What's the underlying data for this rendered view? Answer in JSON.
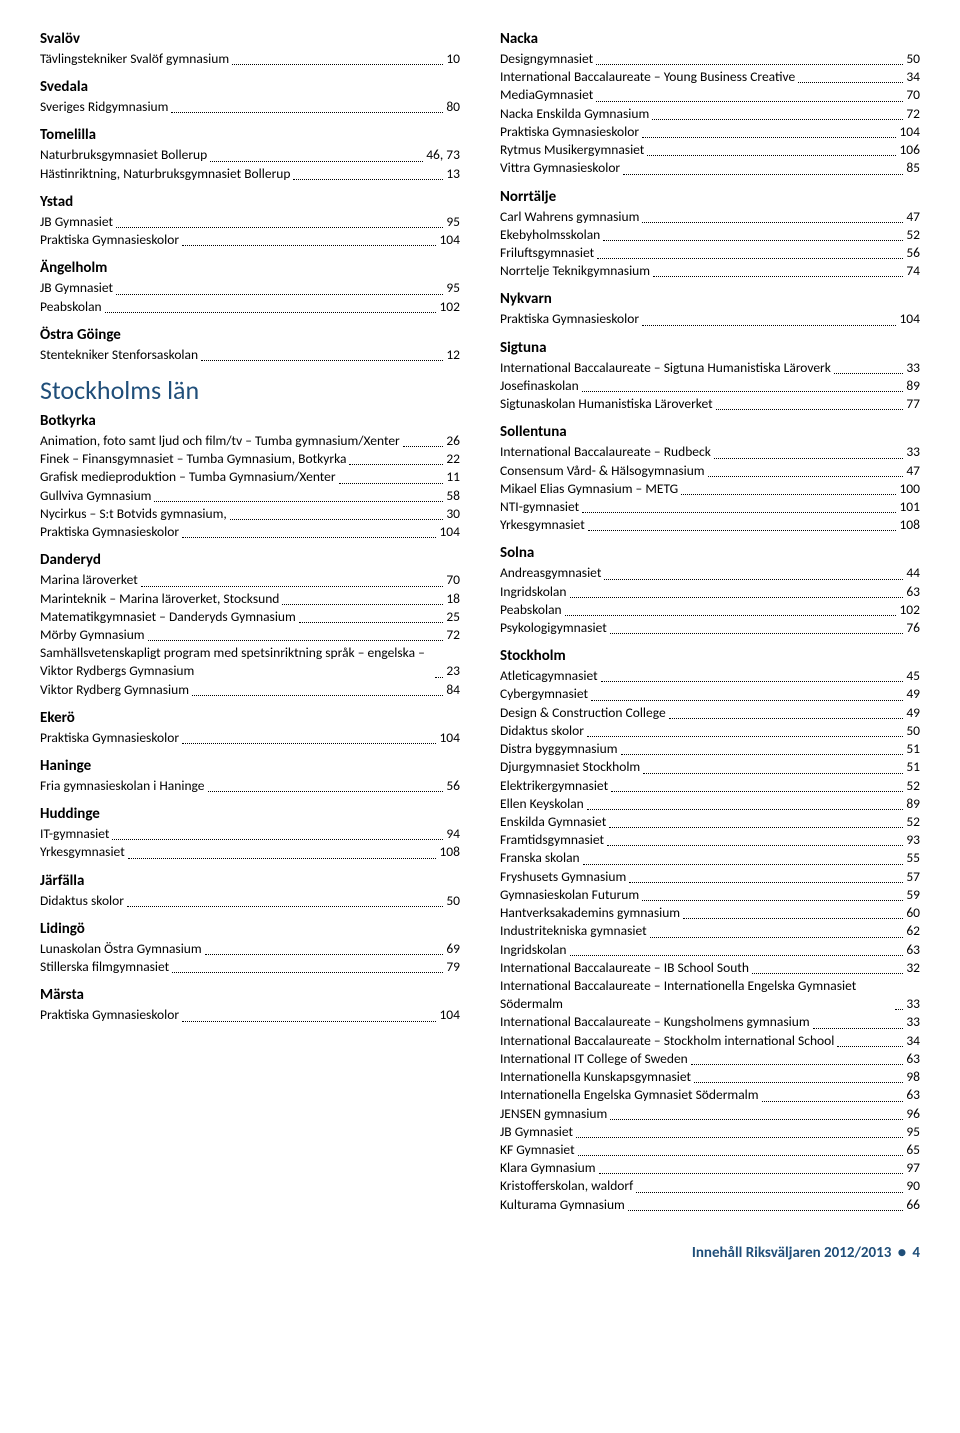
{
  "colors": {
    "heading": "#1f4e79",
    "text": "#000000",
    "background": "#ffffff"
  },
  "typography": {
    "body_font": "Calibri",
    "county_fontsize": 26,
    "municipality_fontsize": 15,
    "row_fontsize": 13.5
  },
  "footer": {
    "text": "Innehåll Riksväljaren 2012/2013",
    "page": "4"
  },
  "left": [
    {
      "type": "municipality",
      "text": "Svalöv"
    },
    {
      "type": "entry",
      "label": "Tävlingstekniker Svalöf gymnasium",
      "page": "10"
    },
    {
      "type": "municipality",
      "text": "Svedala"
    },
    {
      "type": "entry",
      "label": "Sveriges Ridgymnasium",
      "page": "80"
    },
    {
      "type": "municipality",
      "text": "Tomelilla"
    },
    {
      "type": "entry",
      "label": "Naturbruksgymnasiet Bollerup",
      "page": "46, 73"
    },
    {
      "type": "entry",
      "label": "Hästinriktning, Naturbruksgymnasiet Bollerup",
      "page": "13"
    },
    {
      "type": "municipality",
      "text": "Ystad"
    },
    {
      "type": "entry",
      "label": "JB Gymnasiet",
      "page": "95"
    },
    {
      "type": "entry",
      "label": "Praktiska Gymnasieskolor",
      "page": "104"
    },
    {
      "type": "municipality",
      "text": "Ängelholm"
    },
    {
      "type": "entry",
      "label": "JB Gymnasiet",
      "page": "95"
    },
    {
      "type": "entry",
      "label": "Peabskolan",
      "page": "102"
    },
    {
      "type": "municipality",
      "text": "Östra Göinge"
    },
    {
      "type": "entry",
      "label": "Stentekniker Stenforsaskolan",
      "page": "12"
    },
    {
      "type": "county",
      "text": "Stockholms län"
    },
    {
      "type": "municipality",
      "text": "Botkyrka"
    },
    {
      "type": "entry",
      "label": "Animation, foto samt ljud och film/tv – Tumba gymnasium/Xenter",
      "page": "26"
    },
    {
      "type": "entry",
      "label": "Finek – Finansgymnasiet – Tumba Gymnasium, Botkyrka",
      "page": "22"
    },
    {
      "type": "entry",
      "label": "Grafisk medieproduktion – Tumba Gymnasium/Xenter",
      "page": "11"
    },
    {
      "type": "entry",
      "label": "Gullviva Gymnasium",
      "page": "58"
    },
    {
      "type": "entry",
      "label": "Nycirkus – S:t Botvids gymnasium,",
      "page": "30"
    },
    {
      "type": "entry",
      "label": "Praktiska Gymnasieskolor",
      "page": "104"
    },
    {
      "type": "municipality",
      "text": "Danderyd"
    },
    {
      "type": "entry",
      "label": "Marina läroverket",
      "page": "70"
    },
    {
      "type": "entry",
      "label": "Marinteknik – Marina läroverket, Stocksund",
      "page": "18"
    },
    {
      "type": "entry",
      "label": "Matematikgymnasiet – Danderyds Gymnasium",
      "page": "25"
    },
    {
      "type": "entry",
      "label": "Mörby Gymnasium",
      "page": "72"
    },
    {
      "type": "entry",
      "label": "Samhällsvetenskapligt program med spetsinriktning språk – engelska – Viktor Rydbergs Gymnasium",
      "page": "23"
    },
    {
      "type": "entry",
      "label": "Viktor Rydberg Gymnasium",
      "page": "84"
    },
    {
      "type": "municipality",
      "text": "Ekerö"
    },
    {
      "type": "entry",
      "label": "Praktiska Gymnasieskolor",
      "page": "104"
    },
    {
      "type": "municipality",
      "text": "Haninge"
    },
    {
      "type": "entry",
      "label": "Fria gymnasieskolan i Haninge",
      "page": "56"
    },
    {
      "type": "municipality",
      "text": "Huddinge"
    },
    {
      "type": "entry",
      "label": "IT-gymnasiet",
      "page": "94"
    },
    {
      "type": "entry",
      "label": "Yrkesgymnasiet",
      "page": "108"
    },
    {
      "type": "municipality",
      "text": "Järfälla"
    },
    {
      "type": "entry",
      "label": "Didaktus skolor",
      "page": "50"
    },
    {
      "type": "municipality",
      "text": "Lidingö"
    },
    {
      "type": "entry",
      "label": "Lunaskolan Östra Gymnasium",
      "page": "69"
    },
    {
      "type": "entry",
      "label": "Stillerska filmgymnasiet",
      "page": "79"
    },
    {
      "type": "municipality",
      "text": "Märsta"
    },
    {
      "type": "entry",
      "label": "Praktiska Gymnasieskolor",
      "page": "104"
    }
  ],
  "right": [
    {
      "type": "municipality",
      "text": "Nacka"
    },
    {
      "type": "entry",
      "label": "Designgymnasiet",
      "page": "50"
    },
    {
      "type": "entry",
      "label": "International Baccalaureate – Young Business Creative",
      "page": "34"
    },
    {
      "type": "entry",
      "label": "MediaGymnasiet",
      "page": "70"
    },
    {
      "type": "entry",
      "label": "Nacka Enskilda Gymnasium",
      "page": "72"
    },
    {
      "type": "entry",
      "label": "Praktiska Gymnasieskolor",
      "page": "104"
    },
    {
      "type": "entry",
      "label": "Rytmus Musikergymnasiet",
      "page": "106"
    },
    {
      "type": "entry",
      "label": "Vittra Gymnasieskolor",
      "page": "85"
    },
    {
      "type": "municipality",
      "text": "Norrtälje"
    },
    {
      "type": "entry",
      "label": "Carl Wahrens gymnasium",
      "page": "47"
    },
    {
      "type": "entry",
      "label": "Ekebyholmsskolan",
      "page": "52"
    },
    {
      "type": "entry",
      "label": "Friluftsgymnasiet",
      "page": "56"
    },
    {
      "type": "entry",
      "label": "Norrtelje Teknikgymnasium",
      "page": "74"
    },
    {
      "type": "municipality",
      "text": "Nykvarn"
    },
    {
      "type": "entry",
      "label": "Praktiska Gymnasieskolor",
      "page": "104"
    },
    {
      "type": "municipality",
      "text": "Sigtuna"
    },
    {
      "type": "entry",
      "label": "International Baccalaureate – Sigtuna Humanistiska Läroverk",
      "page": "33"
    },
    {
      "type": "entry",
      "label": "Josefinaskolan",
      "page": "89"
    },
    {
      "type": "entry",
      "label": "Sigtunaskolan Humanistiska Läroverket",
      "page": "77"
    },
    {
      "type": "municipality",
      "text": "Sollentuna"
    },
    {
      "type": "entry",
      "label": "International Baccalaureate – Rudbeck",
      "page": "33"
    },
    {
      "type": "entry",
      "label": "Consensum Vård- & Hälsogymnasium",
      "page": "47"
    },
    {
      "type": "entry",
      "label": "Mikael Elias Gymnasium – METG",
      "page": "100"
    },
    {
      "type": "entry",
      "label": "NTI-gymnasiet",
      "page": "101"
    },
    {
      "type": "entry",
      "label": "Yrkesgymnasiet",
      "page": "108"
    },
    {
      "type": "municipality",
      "text": "Solna"
    },
    {
      "type": "entry",
      "label": "Andreasgymnasiet",
      "page": "44"
    },
    {
      "type": "entry",
      "label": "Ingridskolan",
      "page": "63"
    },
    {
      "type": "entry",
      "label": "Peabskolan",
      "page": "102"
    },
    {
      "type": "entry",
      "label": "Psykologigymnasiet",
      "page": "76"
    },
    {
      "type": "municipality",
      "text": "Stockholm"
    },
    {
      "type": "entry",
      "label": "Atleticagymnasiet",
      "page": "45"
    },
    {
      "type": "entry",
      "label": "Cybergymnasiet",
      "page": "49"
    },
    {
      "type": "entry",
      "label": "Design & Construction College",
      "page": "49"
    },
    {
      "type": "entry",
      "label": "Didaktus skolor",
      "page": "50"
    },
    {
      "type": "entry",
      "label": "Distra byggymnasium",
      "page": "51"
    },
    {
      "type": "entry",
      "label": "Djurgymnasiet Stockholm",
      "page": "51"
    },
    {
      "type": "entry",
      "label": "Elektrikergymnasiet",
      "page": "52"
    },
    {
      "type": "entry",
      "label": "Ellen Keyskolan",
      "page": "89"
    },
    {
      "type": "entry",
      "label": "Enskilda Gymnasiet",
      "page": "52"
    },
    {
      "type": "entry",
      "label": "Framtidsgymnasiet",
      "page": "93"
    },
    {
      "type": "entry",
      "label": "Franska skolan",
      "page": "55"
    },
    {
      "type": "entry",
      "label": "Fryshusets Gymnasium",
      "page": "57"
    },
    {
      "type": "entry",
      "label": "Gymnasieskolan Futurum",
      "page": "59"
    },
    {
      "type": "entry",
      "label": "Hantverksakademins gymnasium",
      "page": "60"
    },
    {
      "type": "entry",
      "label": "Industritekniska gymnasiet",
      "page": "62"
    },
    {
      "type": "entry",
      "label": "Ingridskolan",
      "page": "63"
    },
    {
      "type": "entry",
      "label": "International Baccalaureate – IB School South",
      "page": "32"
    },
    {
      "type": "entry",
      "label": "International Baccalaureate – Internationella Engelska Gymnasiet Södermalm",
      "page": "33"
    },
    {
      "type": "entry",
      "label": "International Baccalaureate – Kungsholmens gymnasium",
      "page": "33"
    },
    {
      "type": "entry",
      "label": "International Baccalaureate – Stockholm international School",
      "page": "34"
    },
    {
      "type": "entry",
      "label": "International IT College of Sweden",
      "page": "63"
    },
    {
      "type": "entry",
      "label": "Internationella Kunskapsgymnasiet",
      "page": "98"
    },
    {
      "type": "entry",
      "label": "Internationella Engelska Gymnasiet Södermalm",
      "page": "63"
    },
    {
      "type": "entry",
      "label": "JENSEN gymnasium",
      "page": "96"
    },
    {
      "type": "entry",
      "label": "JB Gymnasiet",
      "page": "95"
    },
    {
      "type": "entry",
      "label": "KF Gymnasiet",
      "page": "65"
    },
    {
      "type": "entry",
      "label": "Klara Gymnasium",
      "page": "97"
    },
    {
      "type": "entry",
      "label": "Kristofferskolan, waldorf",
      "page": "90"
    },
    {
      "type": "entry",
      "label": "Kulturama Gymnasium",
      "page": "66"
    }
  ]
}
